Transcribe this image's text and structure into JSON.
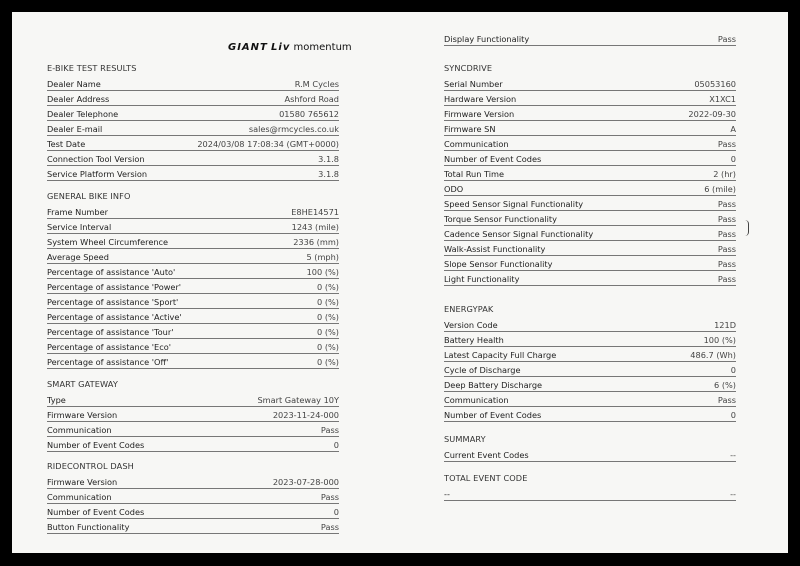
{
  "brand": {
    "logo_text": "GIANT Liv momentum"
  },
  "left": [
    {
      "title": "E-BIKE TEST RESULTS",
      "rows": [
        {
          "label": "Dealer Name",
          "value": "R.M Cycles"
        },
        {
          "label": "Dealer Address",
          "value": "Ashford Road"
        },
        {
          "label": "Dealer Telephone",
          "value": "01580 765612"
        },
        {
          "label": "Dealer E-mail",
          "value": "sales@rmcycles.co.uk"
        },
        {
          "label": "Test Date",
          "value": "2024/03/08 17:08:34 (GMT+0000)"
        },
        {
          "label": "Connection Tool Version",
          "value": "3.1.8"
        },
        {
          "label": "Service Platform Version",
          "value": "3.1.8"
        }
      ]
    },
    {
      "title": "GENERAL BIKE INFO",
      "rows": [
        {
          "label": "Frame Number",
          "value": "E8HE14571"
        },
        {
          "label": "Service Interval",
          "value": "1243 (mile)"
        },
        {
          "label": "System Wheel Circumference",
          "value": "2336 (mm)"
        },
        {
          "label": "Average Speed",
          "value": "5 (mph)"
        },
        {
          "label": "Percentage of assistance 'Auto'",
          "value": "100 (%)"
        },
        {
          "label": "Percentage of assistance 'Power'",
          "value": "0 (%)"
        },
        {
          "label": "Percentage of assistance 'Sport'",
          "value": "0 (%)"
        },
        {
          "label": "Percentage of assistance 'Active'",
          "value": "0 (%)"
        },
        {
          "label": "Percentage of assistance 'Tour'",
          "value": "0 (%)"
        },
        {
          "label": "Percentage of assistance 'Eco'",
          "value": "0 (%)"
        },
        {
          "label": "Percentage of assistance 'Off'",
          "value": "0 (%)"
        }
      ]
    },
    {
      "title": "SMART GATEWAY",
      "rows": [
        {
          "label": "Type",
          "value": "Smart Gateway 10Y"
        },
        {
          "label": "Firmware Version",
          "value": "2023-11-24-000"
        },
        {
          "label": "Communication",
          "value": "Pass"
        },
        {
          "label": "Number of Event Codes",
          "value": "0"
        }
      ]
    },
    {
      "title": "RIDECONTROL DASH",
      "rows": [
        {
          "label": "Firmware Version",
          "value": "2023-07-28-000"
        },
        {
          "label": "Communication",
          "value": "Pass"
        },
        {
          "label": "Number of Event Codes",
          "value": "0"
        },
        {
          "label": "Button Functionality",
          "value": "Pass"
        }
      ]
    }
  ],
  "right": [
    {
      "title": "",
      "rows": [
        {
          "label": "Display Functionality",
          "value": "Pass"
        }
      ]
    },
    {
      "title": "SYNCDRIVE",
      "rows": [
        {
          "label": "Serial Number",
          "value": "05053160"
        },
        {
          "label": "Hardware Version",
          "value": "X1XC1"
        },
        {
          "label": "Firmware Version",
          "value": "2022-09-30"
        },
        {
          "label": "Firmware SN",
          "value": "A"
        },
        {
          "label": "Communication",
          "value": "Pass"
        },
        {
          "label": "Number of Event Codes",
          "value": "0"
        },
        {
          "label": "Total Run Time",
          "value": "2 (hr)"
        },
        {
          "label": "ODO",
          "value": "6 (mile)"
        },
        {
          "label": "Speed Sensor Signal Functionality",
          "value": "Pass"
        },
        {
          "label": "Torque Sensor Functionality",
          "value": "Pass"
        },
        {
          "label": "Cadence Sensor Signal Functionality",
          "value": "Pass"
        },
        {
          "label": "Walk-Assist Functionality",
          "value": "Pass"
        },
        {
          "label": "Slope Sensor Functionality",
          "value": "Pass"
        },
        {
          "label": "Light Functionality",
          "value": "Pass"
        }
      ]
    },
    {
      "title": "ENERGYPAK",
      "rows": [
        {
          "label": "Version Code",
          "value": "121D"
        },
        {
          "label": "Battery Health",
          "value": "100 (%)"
        },
        {
          "label": "Latest Capacity Full Charge",
          "value": "486.7 (Wh)"
        },
        {
          "label": "Cycle of Discharge",
          "value": "0"
        },
        {
          "label": "Deep Battery Discharge",
          "value": "6 (%)"
        },
        {
          "label": "Communication",
          "value": "Pass"
        },
        {
          "label": "Number of Event Codes",
          "value": "0"
        }
      ]
    },
    {
      "title": "SUMMARY",
      "rows": [
        {
          "label": "Current Event Codes",
          "value": "--"
        }
      ]
    },
    {
      "title": "TOTAL EVENT CODE",
      "rows": [
        {
          "label": "--",
          "value": "--"
        }
      ]
    }
  ]
}
